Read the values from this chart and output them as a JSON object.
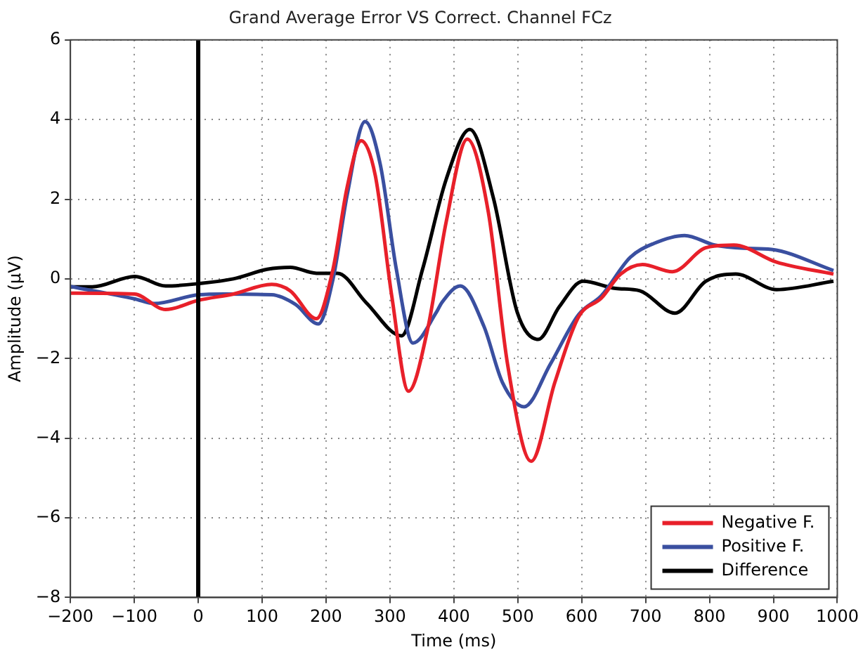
{
  "chart_data": {
    "type": "line",
    "title": "Grand Average Error VS Correct. Channel FCz",
    "xlabel": "Time (ms)",
    "ylabel": "Amplitude (µV)",
    "xlim": [
      -200,
      1000
    ],
    "xticks": [
      -200,
      -100,
      0,
      100,
      200,
      300,
      400,
      500,
      600,
      700,
      800,
      900,
      1000
    ],
    "ylim": [
      -8,
      6
    ],
    "yticks": [
      -8,
      -6,
      -4,
      -2,
      0,
      2,
      4,
      6
    ],
    "grid": true,
    "legend": "bottom right",
    "marker": "none",
    "line_style": "solid",
    "ref_lines": [
      {
        "axis": "x",
        "value": 0,
        "color": "#000000"
      }
    ],
    "series": [
      {
        "name": "Negative F.",
        "color": "#e8202a",
        "x": [
          -200,
          -100,
          -51,
          0,
          55,
          115,
          144,
          185,
          211,
          233,
          255,
          277,
          303,
          329,
          359,
          388,
          421,
          454,
          484,
          521,
          558,
          595,
          631,
          661,
          695,
          742,
          794,
          838,
          905,
          994
        ],
        "values": [
          -0.36,
          -0.38,
          -0.77,
          -0.54,
          -0.38,
          -0.14,
          -0.3,
          -1.0,
          0.25,
          2.3,
          3.47,
          2.6,
          -0.45,
          -2.82,
          -1.26,
          1.43,
          3.51,
          1.67,
          -2.14,
          -4.58,
          -2.6,
          -0.96,
          -0.48,
          0.12,
          0.36,
          0.18,
          0.78,
          0.85,
          0.42,
          0.12
        ]
      },
      {
        "name": "Positive F.",
        "color": "#3a4fa0",
        "x": [
          -200,
          -100,
          -69,
          0,
          41,
          115,
          152,
          188,
          211,
          233,
          261,
          285,
          310,
          336,
          373,
          381,
          410,
          447,
          476,
          510,
          551,
          595,
          631,
          676,
          713,
          761,
          808,
          853,
          897,
          994
        ],
        "values": [
          -0.19,
          -0.5,
          -0.62,
          -0.4,
          -0.38,
          -0.4,
          -0.64,
          -1.13,
          0,
          2.1,
          3.95,
          2.86,
          0.24,
          -1.61,
          -0.83,
          -0.6,
          -0.18,
          -1.19,
          -2.6,
          -3.21,
          -2.14,
          -0.9,
          -0.42,
          0.54,
          0.89,
          1.09,
          0.85,
          0.77,
          0.74,
          0.21
        ]
      },
      {
        "name": "Difference",
        "color": "#000000",
        "x": [
          -200,
          -166,
          -99,
          -51,
          0,
          55,
          108,
          144,
          185,
          218,
          263,
          318,
          351,
          388,
          425,
          462,
          499,
          532,
          565,
          602,
          653,
          691,
          746,
          794,
          841,
          905,
          994
        ],
        "values": [
          -0.2,
          -0.2,
          0.06,
          -0.18,
          -0.12,
          0,
          0.24,
          0.29,
          0.14,
          0.14,
          -0.6,
          -1.43,
          0.24,
          2.5,
          3.75,
          2.02,
          -0.83,
          -1.52,
          -0.7,
          -0.06,
          -0.24,
          -0.3,
          -0.86,
          -0.06,
          0.12,
          -0.27,
          -0.06
        ]
      }
    ]
  }
}
